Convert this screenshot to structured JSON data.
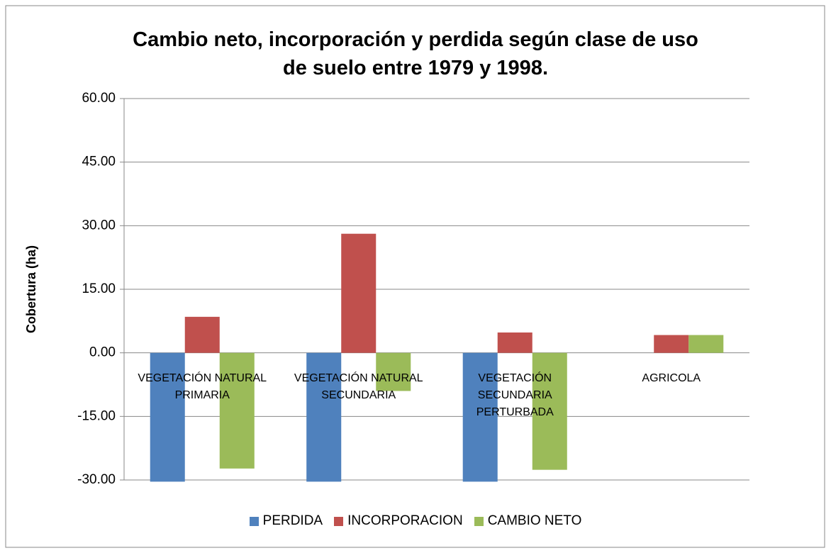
{
  "chart_data": {
    "type": "bar",
    "title": "Cambio neto, incorporación y perdida según clase de uso de suelo entre 1979 y 1998.",
    "y_label": "Cobertura (ha)",
    "categories": [
      "VEGETACIÓN NATURAL PRIMARIA",
      "VEGETACIÓN NATURAL SECUNDARIA",
      "VEGETACIÓN SECUNDARIA PERTURBADA",
      "AGRICOLA"
    ],
    "series": [
      {
        "name": "PERDIDA",
        "color": "#4f81bd",
        "values": [
          -30.4,
          -30.4,
          -30.4,
          0
        ]
      },
      {
        "name": "INCORPORACION",
        "color": "#c0504d",
        "values": [
          8.5,
          28.1,
          4.8,
          4.2
        ]
      },
      {
        "name": "CAMBIO NETO",
        "color": "#9bbb59",
        "values": [
          -27.3,
          -9.0,
          -27.6,
          4.2
        ]
      }
    ],
    "ylim": [
      -30,
      60
    ],
    "yticks": [
      {
        "value": -30,
        "label": "-30.00"
      },
      {
        "value": -15,
        "label": "-15.00"
      },
      {
        "value": 0,
        "label": "0.00"
      },
      {
        "value": 15,
        "label": "15.00"
      },
      {
        "value": 30,
        "label": "30.00"
      },
      {
        "value": 45,
        "label": "45.00"
      },
      {
        "value": 60,
        "label": "60.00"
      }
    ],
    "grid": true,
    "legend": "bottom"
  }
}
